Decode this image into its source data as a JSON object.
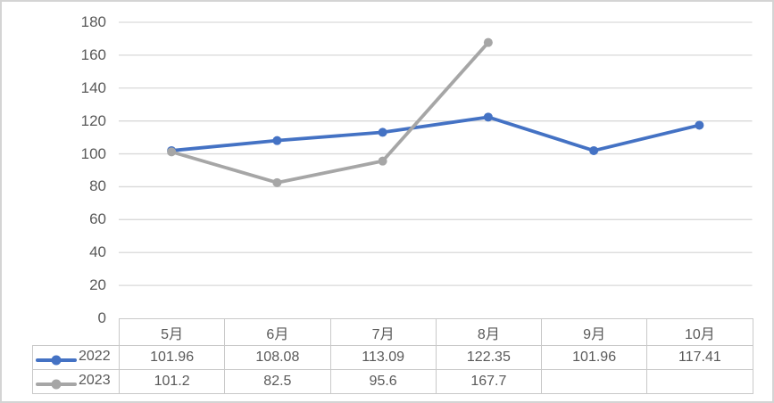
{
  "chart_data": {
    "type": "line",
    "title": "",
    "xlabel": "",
    "ylabel": "",
    "categories": [
      "5月",
      "6月",
      "7月",
      "8月",
      "9月",
      "10月"
    ],
    "series": [
      {
        "name": "2022",
        "color": "#4472C4",
        "values": [
          101.96,
          108.08,
          113.09,
          122.35,
          101.96,
          117.41
        ]
      },
      {
        "name": "2023",
        "color": "#A6A6A6",
        "values": [
          101.2,
          82.5,
          95.6,
          167.7,
          null,
          null
        ]
      }
    ],
    "ylim": [
      0,
      180
    ],
    "ytick_step": 20,
    "grid": "horizontal",
    "legend_position": "data-table-left"
  },
  "y_axis_labels": [
    "180",
    "160",
    "140",
    "120",
    "100",
    "80",
    "60",
    "40",
    "20",
    "0"
  ],
  "data_table": {
    "headers": [
      "5月",
      "6月",
      "7月",
      "8月",
      "9月",
      "10月"
    ],
    "rows": [
      {
        "label": "2022",
        "key_color": "#4472C4",
        "cells": [
          "101.96",
          "108.08",
          "113.09",
          "122.35",
          "101.96",
          "117.41"
        ]
      },
      {
        "label": "2023",
        "key_color": "#A6A6A6",
        "cells": [
          "101.2",
          "82.5",
          "95.6",
          "167.7",
          "",
          ""
        ]
      }
    ]
  },
  "colors": {
    "series_2022": "#4472C4",
    "series_2023": "#A6A6A6",
    "gridline": "#D9D9D9",
    "table_border": "#C9C9C9",
    "text": "#595959",
    "frame_border": "#D4D4D4",
    "background": "#FFFFFF"
  }
}
